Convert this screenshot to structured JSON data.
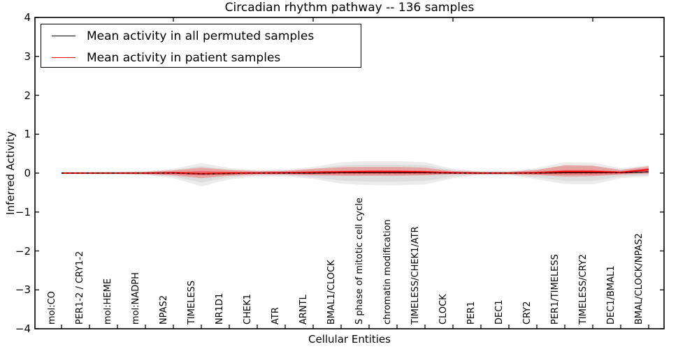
{
  "chart_data": {
    "type": "line",
    "title": "Circadian rhythm pathway -- 136 samples",
    "xlabel": "Cellular Entities",
    "ylabel": "Inferred Activity",
    "ylim": [
      -4,
      4
    ],
    "grid": false,
    "legend_position": "upper left",
    "frame_color": "#000000",
    "ytick_values": [
      -4,
      -3,
      -2,
      -1,
      0,
      1,
      2,
      3,
      4
    ],
    "ytick_labels": [
      "−4",
      "−3",
      "−2",
      "−1",
      "0",
      "1",
      "2",
      "3",
      "4"
    ],
    "top_tick_category_indices": [
      4,
      9,
      14,
      19
    ],
    "categories": [
      "mol:CO",
      "PER1-2 / CRY1-2",
      "mol:HEME",
      "mol:NADPH",
      "NPAS2",
      "TIMELESS",
      "NR1D1",
      "CHEK1",
      "ATR",
      "ARNTL",
      "BMAL1/CLOCK",
      "S phase of mitotic cell cycle",
      "chromatin modification",
      "TIMELESS/CHEK1/ATR",
      "CLOCK",
      "PER1",
      "DEC1",
      "CRY2",
      "PER1/TIMELESS",
      "TIMELESS/CRY2",
      "DEC1/BMAL1",
      "BMAL/CLOCK/NPAS2"
    ],
    "legend": [
      {
        "label": "Mean activity in all permuted samples",
        "color": "#000000"
      },
      {
        "label": "Mean activity in patient samples",
        "color": "#ff0000"
      }
    ],
    "series": [
      {
        "name": "Mean activity in all permuted samples",
        "color": "#000000",
        "line_style": "solid-with-dotted-overlay",
        "values": [
          0,
          0,
          0,
          0,
          0,
          -0.02,
          -0.01,
          0,
          0,
          0,
          0.01,
          0.01,
          0.01,
          0.01,
          0,
          0,
          0,
          0,
          0.01,
          0.01,
          0.01,
          0.03
        ]
      },
      {
        "name": "Mean activity in patient samples",
        "color": "#ff0000",
        "line_style": "solid",
        "values": [
          0,
          0,
          0,
          0,
          0.01,
          -0.01,
          0,
          0,
          0.01,
          0.02,
          0.03,
          0.04,
          0.04,
          0.03,
          0.01,
          0,
          0,
          0.01,
          0.04,
          0.04,
          0.02,
          0.09
        ]
      }
    ],
    "bands": [
      {
        "name": "permuted-samples-range-outer",
        "color": "#c8c8c8",
        "opacity": 0.35,
        "top": [
          0.03,
          0.03,
          0.04,
          0.05,
          0.11,
          0.26,
          0.13,
          0.08,
          0.09,
          0.16,
          0.28,
          0.31,
          0.31,
          0.28,
          0.11,
          0.05,
          0.05,
          0.13,
          0.28,
          0.27,
          0.13,
          0.2
        ],
        "bottom": [
          -0.03,
          -0.03,
          -0.04,
          -0.05,
          -0.13,
          -0.34,
          -0.16,
          -0.09,
          -0.09,
          -0.15,
          -0.27,
          -0.31,
          -0.32,
          -0.29,
          -0.13,
          -0.05,
          -0.05,
          -0.16,
          -0.28,
          -0.29,
          -0.13,
          -0.09
        ]
      },
      {
        "name": "permuted-samples-range-inner",
        "color": "#c8c8c8",
        "opacity": 0.4,
        "top": [
          0.02,
          0.02,
          0.03,
          0.04,
          0.08,
          0.18,
          0.09,
          0.06,
          0.06,
          0.11,
          0.2,
          0.22,
          0.22,
          0.2,
          0.08,
          0.04,
          0.04,
          0.09,
          0.2,
          0.19,
          0.09,
          0.14
        ],
        "bottom": [
          -0.02,
          -0.02,
          -0.03,
          -0.04,
          -0.09,
          -0.24,
          -0.11,
          -0.06,
          -0.06,
          -0.11,
          -0.19,
          -0.22,
          -0.22,
          -0.2,
          -0.09,
          -0.04,
          -0.04,
          -0.11,
          -0.2,
          -0.2,
          -0.09,
          -0.06
        ]
      },
      {
        "name": "patient-samples-range-outer",
        "color": "#ff0000",
        "opacity": 0.25,
        "top": [
          0.02,
          0.02,
          0.02,
          0.03,
          0.07,
          0.14,
          0.08,
          0.05,
          0.06,
          0.11,
          0.15,
          0.16,
          0.16,
          0.14,
          0.05,
          0.03,
          0.03,
          0.08,
          0.2,
          0.19,
          0.08,
          0.18
        ],
        "bottom": [
          -0.02,
          -0.02,
          -0.02,
          -0.03,
          -0.06,
          -0.13,
          -0.07,
          -0.04,
          -0.04,
          -0.06,
          -0.07,
          -0.07,
          -0.07,
          -0.06,
          -0.03,
          -0.03,
          -0.03,
          -0.05,
          -0.09,
          -0.08,
          -0.04,
          -0.02
        ]
      },
      {
        "name": "patient-samples-range-inner",
        "color": "#ff0000",
        "opacity": 0.3,
        "top": [
          0.01,
          0.01,
          0.01,
          0.02,
          0.03,
          0.06,
          0.04,
          0.03,
          0.03,
          0.05,
          0.06,
          0.07,
          0.07,
          0.06,
          0.03,
          0.02,
          0.02,
          0.04,
          0.08,
          0.08,
          0.04,
          0.12
        ],
        "bottom": [
          -0.01,
          -0.01,
          -0.01,
          -0.02,
          -0.03,
          -0.06,
          -0.04,
          -0.02,
          -0.02,
          -0.03,
          -0.03,
          -0.03,
          -0.03,
          -0.03,
          -0.02,
          -0.02,
          -0.02,
          -0.03,
          -0.04,
          -0.04,
          -0.02,
          0.03
        ]
      }
    ]
  }
}
